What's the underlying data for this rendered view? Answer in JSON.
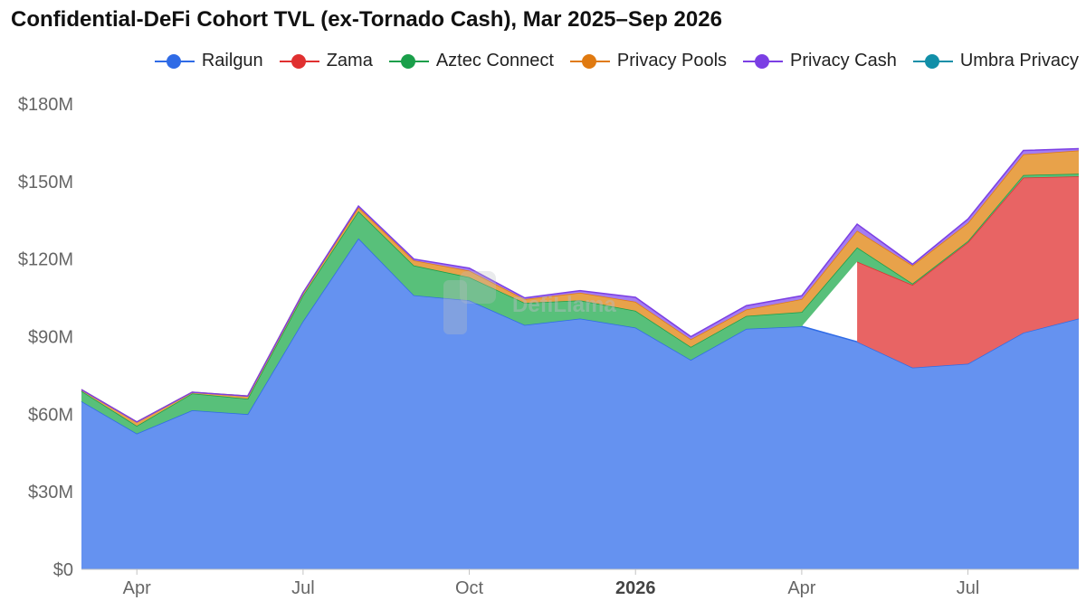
{
  "title": "Confidential-DeFi Cohort TVL (ex-Tornado Cash), Mar 2025–Sep 2026",
  "watermark": "DefiLlama",
  "legend": [
    {
      "name": "Railgun",
      "color": "#2f6be6"
    },
    {
      "name": "Zama",
      "color": "#e03030"
    },
    {
      "name": "Aztec Connect",
      "color": "#1a9f4a"
    },
    {
      "name": "Privacy Pools",
      "color": "#e07a10"
    },
    {
      "name": "Privacy Cash",
      "color": "#7b3fe4"
    },
    {
      "name": "Umbra Privacy",
      "color": "#118fa8"
    }
  ],
  "chart_data": {
    "type": "area",
    "stacked": true,
    "title": "Confidential-DeFi Cohort TVL (ex-Tornado Cash), Mar 2025–Sep 2026",
    "x": [
      "2025-03",
      "2025-04",
      "2025-05",
      "2025-06",
      "2025-07",
      "2025-08",
      "2025-09",
      "2025-10",
      "2025-11",
      "2025-12",
      "2026-01",
      "2026-02",
      "2026-03",
      "2026-04",
      "2026-05",
      "2026-06",
      "2026-07",
      "2026-08",
      "2026-09"
    ],
    "ylim": [
      0,
      180
    ],
    "y_unit": "$M",
    "y_ticks": [
      "$0",
      "$30M",
      "$60M",
      "$90M",
      "$120M",
      "$150M",
      "$180M"
    ],
    "x_tick_labels": [
      {
        "x": "2025-04",
        "label": "Apr",
        "bold": false
      },
      {
        "x": "2025-07",
        "label": "Jul",
        "bold": false
      },
      {
        "x": "2025-10",
        "label": "Oct",
        "bold": false
      },
      {
        "x": "2026-01",
        "label": "2026",
        "bold": true
      },
      {
        "x": "2026-04",
        "label": "Apr",
        "bold": false
      },
      {
        "x": "2026-07",
        "label": "Jul",
        "bold": false
      }
    ],
    "grid": false,
    "legend_position": "top-right",
    "series": [
      {
        "name": "Railgun",
        "color": "#6592f0",
        "values": [
          65,
          52.5,
          61.5,
          60,
          96,
          128,
          106,
          104,
          94.5,
          97,
          93.5,
          81,
          93,
          94,
          88,
          78,
          79.5,
          91.5,
          97
        ]
      },
      {
        "name": "Zama",
        "color": "#e86464",
        "values": [
          null,
          null,
          null,
          null,
          null,
          null,
          null,
          null,
          null,
          null,
          null,
          null,
          null,
          null,
          31,
          32,
          47,
          60,
          55
        ]
      },
      {
        "name": "Aztec Connect",
        "color": "#58c07a",
        "values": [
          4,
          3,
          6.5,
          6,
          10,
          10.5,
          11.5,
          9,
          8.5,
          7,
          6.5,
          5,
          5,
          5.5,
          5.5,
          0.5,
          0.5,
          1,
          1
        ]
      },
      {
        "name": "Privacy Pools",
        "color": "#e8a24a",
        "values": [
          0.5,
          1.5,
          0.5,
          1,
          1,
          1.5,
          2,
          2.5,
          1.5,
          3,
          3.5,
          3,
          2.5,
          5,
          6.5,
          7,
          7,
          8,
          9
        ]
      },
      {
        "name": "Privacy Cash",
        "color": "#a47cf2",
        "values": [
          0,
          0,
          0,
          0,
          0,
          0.5,
          0.5,
          1,
          0.5,
          0.8,
          1.7,
          1,
          1.5,
          1.3,
          2.5,
          0.5,
          1.5,
          1.5,
          0.7
        ]
      },
      {
        "name": "Umbra Privacy",
        "color": "#3aa9c0",
        "values": [
          0,
          0,
          0,
          0,
          0,
          0,
          0,
          0,
          0,
          0,
          0,
          0,
          0,
          0,
          0,
          0,
          0,
          0,
          0
        ]
      }
    ]
  }
}
